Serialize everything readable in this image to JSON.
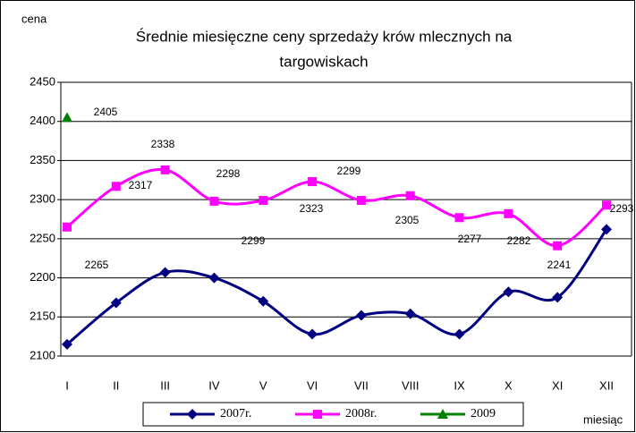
{
  "chart_data": {
    "type": "line",
    "title": [
      "Średnie miesięczne ceny sprzedaży krów mlecznych na",
      "targowiskach"
    ],
    "y_label": "cena",
    "x_label": "miesiąc",
    "categories": [
      "I",
      "II",
      "III",
      "IV",
      "V",
      "VI",
      "VII",
      "VIII",
      "IX",
      "X",
      "XI",
      "XII"
    ],
    "series": [
      {
        "name": "2007r.",
        "color": "#000080",
        "marker": "diamond",
        "values": [
          2115,
          2168,
          2207,
          2200,
          2170,
          2128,
          2152,
          2154,
          2128,
          2182,
          2175,
          2262
        ]
      },
      {
        "name": "2008r.",
        "color": "#ff00ff",
        "marker": "square",
        "labels": true,
        "values": [
          2265,
          2317,
          2338,
          2298,
          2299,
          2323,
          2299,
          2305,
          2277,
          2282,
          2241,
          2293
        ]
      },
      {
        "name": "2009",
        "color": "#008000",
        "marker": "triangle",
        "labels": true,
        "values": [
          2405,
          null,
          null,
          null,
          null,
          null,
          null,
          null,
          null,
          null,
          null,
          null
        ]
      }
    ],
    "ylim": [
      2100,
      2450
    ],
    "yticks": [
      2100,
      2150,
      2200,
      2250,
      2300,
      2350,
      2400,
      2450
    ],
    "grid": true
  }
}
